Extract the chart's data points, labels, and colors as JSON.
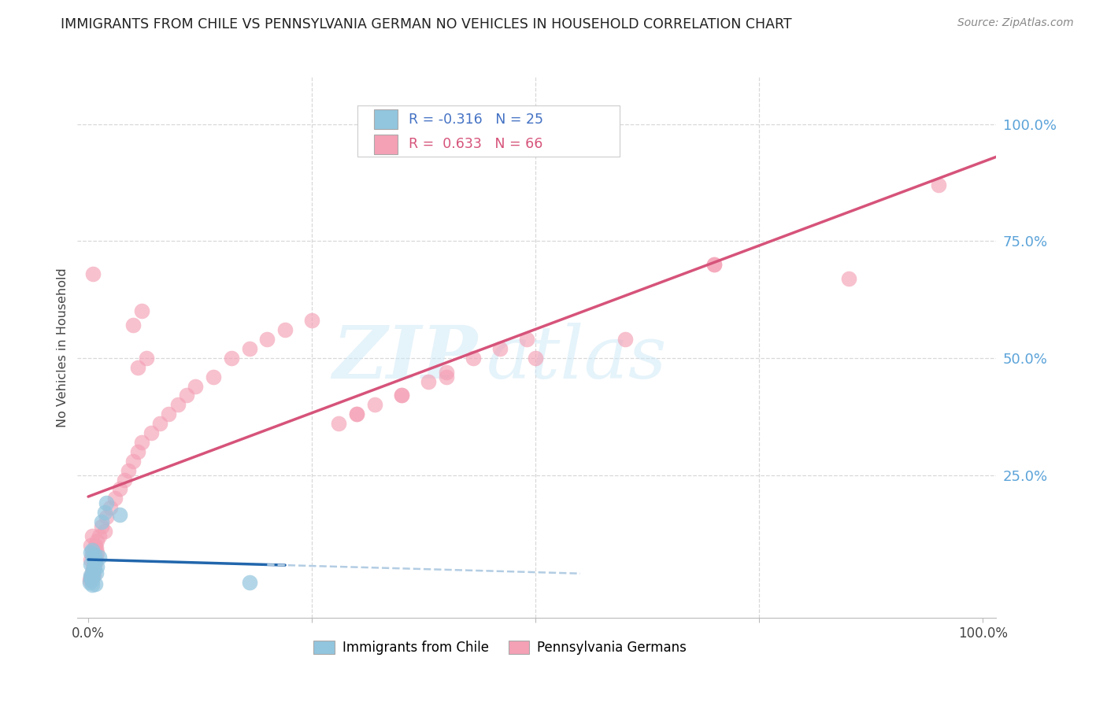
{
  "title": "IMMIGRANTS FROM CHILE VS PENNSYLVANIA GERMAN NO VEHICLES IN HOUSEHOLD CORRELATION CHART",
  "source": "Source: ZipAtlas.com",
  "ylabel": "No Vehicles in Household",
  "watermark_zip": "ZIP",
  "watermark_atlas": "atlas",
  "legend_label1": "Immigrants from Chile",
  "legend_label2": "Pennsylvania Germans",
  "r1": "-0.316",
  "n1": "25",
  "r2": "0.633",
  "n2": "66",
  "color_blue": "#92c5de",
  "color_pink": "#f4a0b5",
  "color_blue_line": "#2166ac",
  "color_pink_line": "#d6537a",
  "color_dashed_line": "#b3cde3",
  "ytick_color": "#5ba3d9",
  "title_color": "#222222",
  "source_color": "#888888",
  "grid_color": "#d8d8d8",
  "ylabel_color": "#444444",
  "blue_x": [
    0.002,
    0.003,
    0.004,
    0.003,
    0.005,
    0.006,
    0.008,
    0.007,
    0.01,
    0.009,
    0.012,
    0.003,
    0.004,
    0.005,
    0.006,
    0.007,
    0.008,
    0.003,
    0.004,
    0.005,
    0.015,
    0.018,
    0.02,
    0.035,
    0.18
  ],
  "blue_y": [
    0.02,
    0.035,
    0.015,
    0.06,
    0.045,
    0.055,
    0.07,
    0.08,
    0.055,
    0.04,
    0.075,
    0.03,
    0.025,
    0.038,
    0.048,
    0.062,
    0.018,
    0.085,
    0.09,
    0.072,
    0.15,
    0.17,
    0.19,
    0.165,
    0.02
  ],
  "pink_x": [
    0.002,
    0.003,
    0.004,
    0.005,
    0.006,
    0.007,
    0.003,
    0.004,
    0.005,
    0.006,
    0.007,
    0.008,
    0.009,
    0.01,
    0.008,
    0.009,
    0.01,
    0.012,
    0.015,
    0.018,
    0.02,
    0.025,
    0.03,
    0.035,
    0.04,
    0.045,
    0.05,
    0.055,
    0.06,
    0.07,
    0.08,
    0.09,
    0.1,
    0.11,
    0.12,
    0.14,
    0.16,
    0.18,
    0.2,
    0.22,
    0.25,
    0.28,
    0.3,
    0.32,
    0.35,
    0.38,
    0.4,
    0.43,
    0.46,
    0.49,
    0.05,
    0.06,
    0.055,
    0.065,
    0.3,
    0.35,
    0.4,
    0.5,
    0.6,
    0.7,
    0.003,
    0.004,
    0.005,
    0.7,
    0.85,
    0.95
  ],
  "pink_y": [
    0.025,
    0.03,
    0.04,
    0.05,
    0.035,
    0.06,
    0.07,
    0.08,
    0.045,
    0.055,
    0.09,
    0.065,
    0.075,
    0.085,
    0.1,
    0.095,
    0.11,
    0.12,
    0.14,
    0.13,
    0.16,
    0.18,
    0.2,
    0.22,
    0.24,
    0.26,
    0.28,
    0.3,
    0.32,
    0.34,
    0.36,
    0.38,
    0.4,
    0.42,
    0.44,
    0.46,
    0.5,
    0.52,
    0.54,
    0.56,
    0.58,
    0.36,
    0.38,
    0.4,
    0.42,
    0.45,
    0.47,
    0.5,
    0.52,
    0.54,
    0.57,
    0.6,
    0.48,
    0.5,
    0.38,
    0.42,
    0.46,
    0.5,
    0.54,
    0.7,
    0.1,
    0.12,
    0.68,
    0.7,
    0.67,
    0.87
  ]
}
